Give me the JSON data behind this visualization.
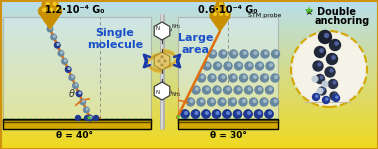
{
  "title_left": "1.2·10⁻⁴ G₀",
  "title_right": "0.6·10⁻⁴ G₀",
  "label_single": "Single\nmolecule",
  "label_large": "Large\narea",
  "label_stm": "STM probe",
  "label_theta_left": "θ = 40°",
  "label_theta_right": "θ = 30°",
  "label_double_1": "★ Double",
  "label_double_2": "anchoring",
  "bg_yellow": "#f0d820",
  "bg_blue": "#b8ddf0",
  "panel_bg": "#ddeef8",
  "panel_edge": "#aaaaaa",
  "floor_color": "#d4a800",
  "floor_highlight": "#f0c800",
  "text_blue": "#1a50c8",
  "text_green": "#40b030",
  "star_green": "#50c030",
  "arrow_blue": "#1a3aaa",
  "line_orange": "#e07010",
  "gold_dark": "#c89000",
  "gold_light": "#f0c820",
  "ball_gray": "#6888a0",
  "ball_dark": "#304060",
  "ball_blue": "#203890",
  "ball_highlight": "#a0b8c8",
  "mol_bond": "#404040",
  "ribbon_gold": "#d4a020",
  "ribbon_gold2": "#f0c840",
  "figsize": [
    3.78,
    1.49
  ],
  "dpi": 100
}
